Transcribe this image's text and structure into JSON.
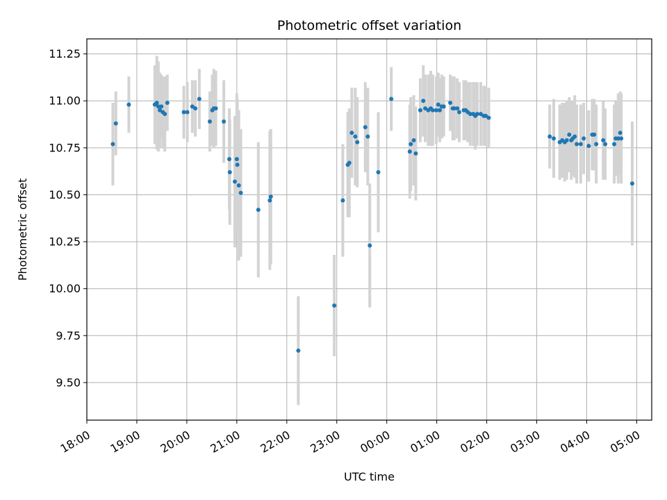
{
  "chart_data": {
    "type": "scatter",
    "title": "Photometric offset variation",
    "xlabel": "UTC time",
    "ylabel": "Photometric offset",
    "grid": true,
    "legend": "none",
    "x_unit": "hours after 18:00 UTC",
    "xlim": [
      0,
      11.3
    ],
    "ylim": [
      9.3,
      11.33
    ],
    "x_ticks": [
      0,
      1,
      2,
      3,
      4,
      5,
      6,
      7,
      8,
      9,
      10,
      11
    ],
    "x_tick_labels": [
      "18:00",
      "19:00",
      "20:00",
      "21:00",
      "22:00",
      "23:00",
      "00:00",
      "01:00",
      "02:00",
      "03:00",
      "04:00",
      "05:00"
    ],
    "y_ticks": [
      9.5,
      9.75,
      10.0,
      10.25,
      10.5,
      10.75,
      11.0,
      11.25
    ],
    "y_tick_labels": [
      "9.50",
      "9.75",
      "10.00",
      "10.25",
      "10.50",
      "10.75",
      "11.00",
      "11.25"
    ],
    "colors": {
      "point": "#1f77b4",
      "errorbar": "#d3d3d3",
      "grid": "#b0b0b0"
    },
    "series": [
      {
        "points": [
          [
            0.52,
            10.77,
            0.22
          ],
          [
            0.58,
            10.88,
            0.17
          ],
          [
            0.84,
            10.98,
            0.15
          ],
          [
            1.36,
            10.98,
            0.21
          ],
          [
            1.4,
            10.99,
            0.25
          ],
          [
            1.43,
            10.97,
            0.24
          ],
          [
            1.46,
            10.95,
            0.2
          ],
          [
            1.49,
            10.97,
            0.17
          ],
          [
            1.52,
            10.94,
            0.19
          ],
          [
            1.56,
            10.93,
            0.2
          ],
          [
            1.61,
            10.99,
            0.15
          ],
          [
            1.94,
            10.94,
            0.14
          ],
          [
            2.01,
            10.94,
            0.16
          ],
          [
            2.11,
            10.97,
            0.14
          ],
          [
            2.17,
            10.96,
            0.15
          ],
          [
            2.25,
            11.01,
            0.16
          ],
          [
            2.46,
            10.89,
            0.16
          ],
          [
            2.51,
            10.95,
            0.19
          ],
          [
            2.54,
            10.96,
            0.21
          ],
          [
            2.58,
            10.96,
            0.2
          ],
          [
            2.74,
            10.89,
            0.22
          ],
          [
            2.85,
            10.69,
            0.27
          ],
          [
            2.86,
            10.62,
            0.28
          ],
          [
            2.96,
            10.57,
            0.35
          ],
          [
            3.0,
            10.69,
            0.35
          ],
          [
            3.01,
            10.66,
            0.35
          ],
          [
            3.04,
            10.55,
            0.4
          ],
          [
            3.08,
            10.51,
            0.34
          ],
          [
            3.43,
            10.42,
            0.36
          ],
          [
            3.66,
            10.47,
            0.37
          ],
          [
            3.68,
            10.49,
            0.36
          ],
          [
            4.23,
            9.67,
            0.29
          ],
          [
            4.95,
            9.91,
            0.27
          ],
          [
            5.12,
            10.47,
            0.3
          ],
          [
            5.22,
            10.66,
            0.28
          ],
          [
            5.25,
            10.67,
            0.29
          ],
          [
            5.3,
            10.83,
            0.24
          ],
          [
            5.37,
            10.81,
            0.26
          ],
          [
            5.41,
            10.78,
            0.24
          ],
          [
            5.57,
            10.86,
            0.24
          ],
          [
            5.62,
            10.81,
            0.26
          ],
          [
            5.66,
            10.23,
            0.33
          ],
          [
            5.83,
            10.62,
            0.32
          ],
          [
            6.09,
            11.01,
            0.17
          ],
          [
            6.46,
            10.73,
            0.25
          ],
          [
            6.48,
            10.77,
            0.25
          ],
          [
            6.54,
            10.79,
            0.24
          ],
          [
            6.58,
            10.72,
            0.25
          ],
          [
            6.67,
            10.95,
            0.17
          ],
          [
            6.73,
            11.0,
            0.19
          ],
          [
            6.77,
            10.96,
            0.18
          ],
          [
            6.83,
            10.95,
            0.19
          ],
          [
            6.88,
            10.96,
            0.2
          ],
          [
            6.92,
            10.95,
            0.19
          ],
          [
            6.99,
            10.95,
            0.18
          ],
          [
            7.03,
            10.98,
            0.17
          ],
          [
            7.06,
            10.95,
            0.17
          ],
          [
            7.1,
            10.97,
            0.17
          ],
          [
            7.14,
            10.97,
            0.16
          ],
          [
            7.27,
            10.99,
            0.15
          ],
          [
            7.32,
            10.96,
            0.17
          ],
          [
            7.35,
            10.96,
            0.17
          ],
          [
            7.41,
            10.96,
            0.16
          ],
          [
            7.45,
            10.94,
            0.16
          ],
          [
            7.54,
            10.95,
            0.16
          ],
          [
            7.58,
            10.95,
            0.16
          ],
          [
            7.62,
            10.94,
            0.16
          ],
          [
            7.67,
            10.93,
            0.17
          ],
          [
            7.73,
            10.93,
            0.17
          ],
          [
            7.77,
            10.92,
            0.18
          ],
          [
            7.81,
            10.93,
            0.17
          ],
          [
            7.88,
            10.93,
            0.17
          ],
          [
            7.94,
            10.92,
            0.16
          ],
          [
            7.98,
            10.92,
            0.16
          ],
          [
            8.04,
            10.91,
            0.16
          ],
          [
            9.26,
            10.81,
            0.17
          ],
          [
            9.34,
            10.8,
            0.21
          ],
          [
            9.46,
            10.78,
            0.2
          ],
          [
            9.51,
            10.79,
            0.2
          ],
          [
            9.56,
            10.78,
            0.21
          ],
          [
            9.6,
            10.79,
            0.21
          ],
          [
            9.65,
            10.82,
            0.2
          ],
          [
            9.69,
            10.79,
            0.21
          ],
          [
            9.72,
            10.8,
            0.2
          ],
          [
            9.76,
            10.81,
            0.22
          ],
          [
            9.8,
            10.77,
            0.21
          ],
          [
            9.88,
            10.77,
            0.21
          ],
          [
            9.94,
            10.8,
            0.19
          ],
          [
            10.04,
            10.76,
            0.19
          ],
          [
            10.11,
            10.82,
            0.19
          ],
          [
            10.15,
            10.82,
            0.19
          ],
          [
            10.19,
            10.77,
            0.21
          ],
          [
            10.33,
            10.79,
            0.21
          ],
          [
            10.37,
            10.77,
            0.19
          ],
          [
            10.55,
            10.77,
            0.21
          ],
          [
            10.58,
            10.8,
            0.2
          ],
          [
            10.63,
            10.8,
            0.24
          ],
          [
            10.67,
            10.83,
            0.22
          ],
          [
            10.69,
            10.8,
            0.24
          ],
          [
            10.91,
            10.56,
            0.33
          ]
        ]
      }
    ]
  }
}
